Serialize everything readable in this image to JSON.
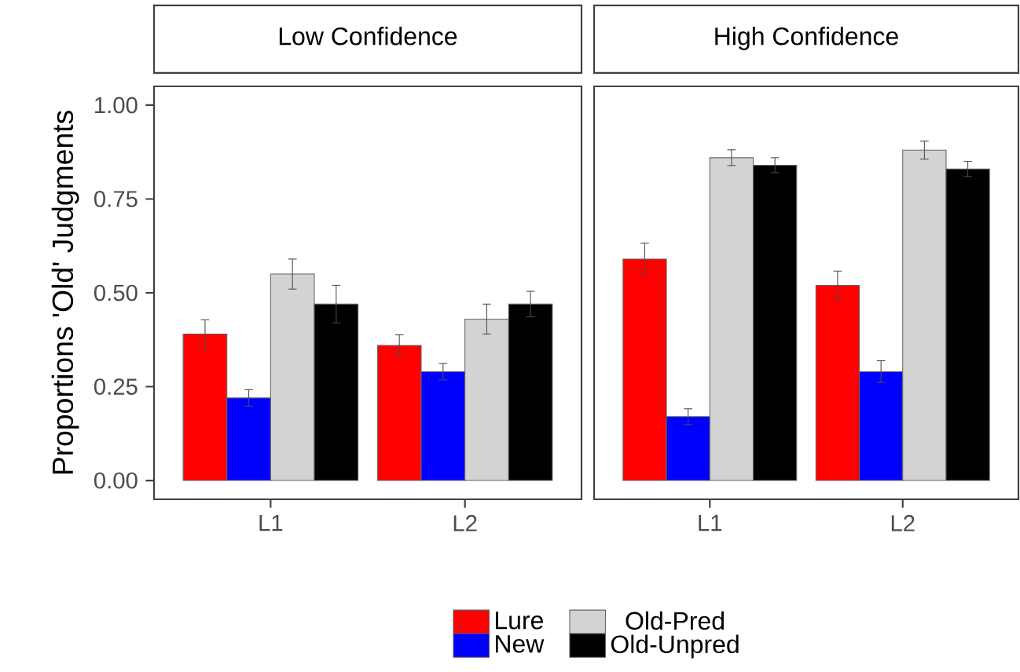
{
  "chart_data": [
    {
      "type": "bar",
      "title": "Low Confidence",
      "ylabel": "Proportions 'Old' Judgments",
      "categories": [
        "L1",
        "L2"
      ],
      "ylim": [
        -0.05,
        1.05
      ],
      "yticks": [
        {
          "value": 0,
          "label": "0.00"
        },
        {
          "value": 0.25,
          "label": "0.25"
        },
        {
          "value": 0.5,
          "label": "0.50"
        },
        {
          "value": 0.75,
          "label": "0.75"
        },
        {
          "value": 1,
          "label": "1.00"
        }
      ],
      "grid": false,
      "legend": "bottom",
      "series": [
        {
          "name": "Lure",
          "color": "#ff0000",
          "values": [
            0.39,
            0.36
          ],
          "errors": [
            0.038,
            0.028
          ]
        },
        {
          "name": "New",
          "color": "#0000ff",
          "values": [
            0.22,
            0.29
          ],
          "errors": [
            0.022,
            0.022
          ]
        },
        {
          "name": "Old-Pred",
          "color": "#d3d3d3",
          "values": [
            0.55,
            0.43
          ],
          "errors": [
            0.04,
            0.04
          ]
        },
        {
          "name": "Old-Unpred",
          "color": "#000000",
          "values": [
            0.47,
            0.47
          ],
          "errors": [
            0.05,
            0.034
          ]
        }
      ]
    },
    {
      "type": "bar",
      "title": "High Confidence",
      "categories": [
        "L1",
        "L2"
      ],
      "ylim": [
        -0.05,
        1.05
      ],
      "tick_labels": "x",
      "grid": false,
      "series": [
        {
          "color": "#ff0000",
          "values": [
            0.59,
            0.52
          ],
          "errors": [
            0.042,
            0.038
          ]
        },
        {
          "color": "#0000ff",
          "values": [
            0.17,
            0.29
          ],
          "errors": [
            0.021,
            0.029
          ]
        },
        {
          "color": "#d3d3d3",
          "values": [
            0.86,
            0.88
          ],
          "errors": [
            0.021,
            0.024
          ]
        },
        {
          "color": "#000000",
          "values": [
            0.84,
            0.83
          ],
          "errors": [
            0.02,
            0.02
          ]
        }
      ]
    }
  ]
}
